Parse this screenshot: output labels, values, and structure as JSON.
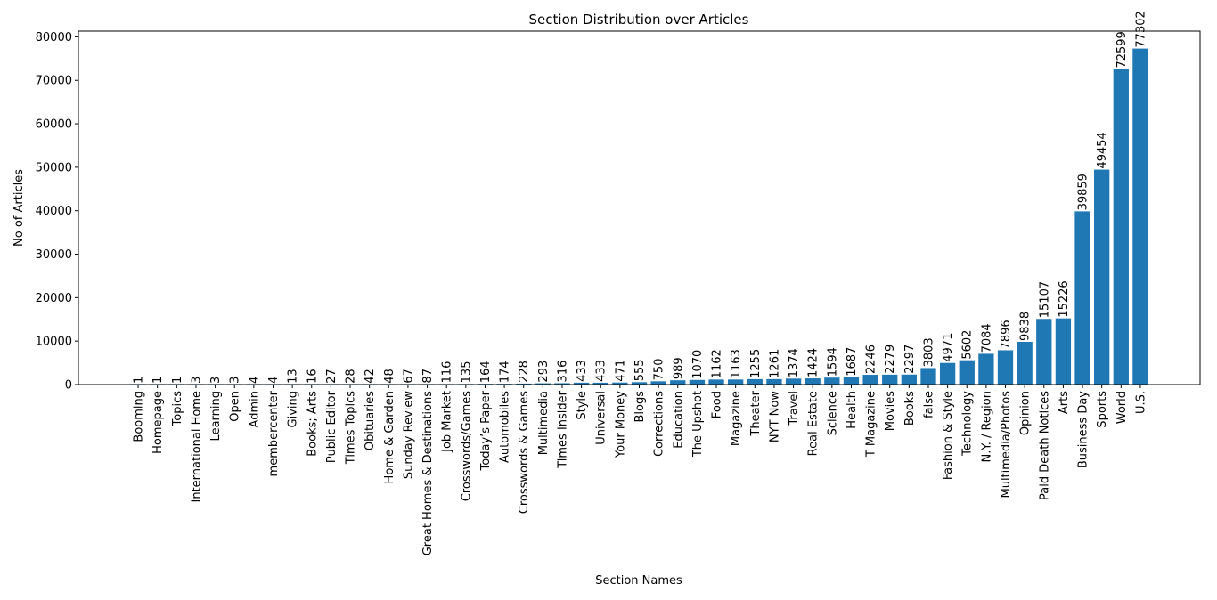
{
  "chart_data": {
    "type": "bar",
    "title": "Section Distribution over Articles",
    "xlabel": "Section Names",
    "ylabel": "No of Articles",
    "ylim": [
      0,
      81315
    ],
    "yticks": [
      0,
      10000,
      20000,
      30000,
      40000,
      50000,
      60000,
      70000,
      80000
    ],
    "grid": false,
    "bar_color": "#1f77b4",
    "categories": [
      "Booming",
      "Homepage",
      "Topics",
      "International Home",
      "Learning",
      "Open",
      "Admin",
      "membercenter",
      "Giving",
      "Books; Arts",
      "Public Editor",
      "Times Topics",
      "Obituaries",
      "Home & Garden",
      "Sunday Review",
      "Great Homes & Destinations",
      "Job Market",
      "Crosswords/Games",
      "Today’s Paper",
      "Automobiles",
      "Crosswords & Games",
      "Multimedia",
      "Times Insider",
      "Style",
      "Universal",
      "Your Money",
      "Blogs",
      "Corrections",
      "Education",
      "The Upshot",
      "Food",
      "Magazine",
      "Theater",
      "NYT Now",
      "Travel",
      "Real Estate",
      "Science",
      "Health",
      "T Magazine",
      "Movies",
      "Books",
      "false",
      "Fashion & Style",
      "Technology",
      "N.Y. / Region",
      "Multimedia/Photos",
      "Opinion",
      "Paid Death Notices",
      "Arts",
      "Business Day",
      "Sports",
      "World",
      "U.S."
    ],
    "values": [
      1,
      1,
      1,
      3,
      3,
      3,
      4,
      4,
      13,
      16,
      27,
      28,
      42,
      48,
      67,
      87,
      116,
      135,
      164,
      174,
      228,
      293,
      316,
      433,
      433,
      471,
      555,
      750,
      989,
      1070,
      1162,
      1163,
      1255,
      1261,
      1374,
      1424,
      1594,
      1687,
      2246,
      2279,
      2297,
      3803,
      4971,
      5602,
      7084,
      7896,
      9838,
      15107,
      15226,
      39859,
      49454,
      72599,
      77302
    ]
  }
}
